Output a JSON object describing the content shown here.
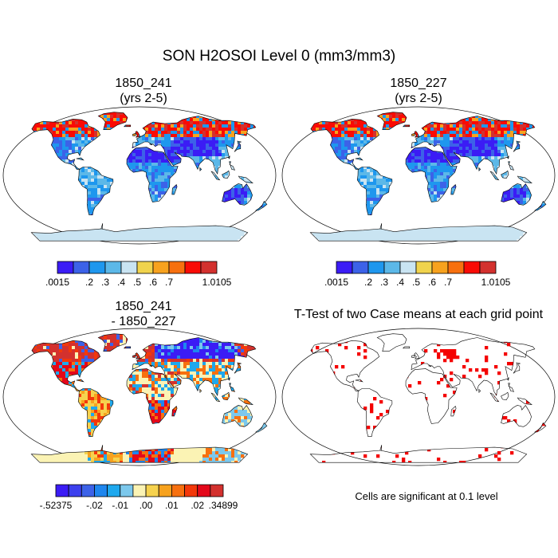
{
  "figure": {
    "title": "SON H2OSOI Level 0 (mm3/mm3)"
  },
  "panels": [
    {
      "id": "case1",
      "title_line1": "1850_241",
      "title_line2": "(yrs 2-5)",
      "style": "field"
    },
    {
      "id": "case2",
      "title_line1": "1850_227",
      "title_line2": "(yrs 2-5)",
      "style": "field"
    },
    {
      "id": "diff",
      "title_line1": "1850_241",
      "title_line2": "- 1850_227",
      "style": "diff"
    },
    {
      "id": "ttest",
      "title_line1": "T-Test of two Case means at each grid point",
      "title_line2": "",
      "style": "ttest"
    }
  ],
  "colorbars": [
    {
      "id": "field-colorbar-1",
      "colors": [
        "#3b1cf5",
        "#3c62e8",
        "#1e97ee",
        "#5cb8e8",
        "#c9e4f2",
        "#f0d34d",
        "#f7a21e",
        "#f7700f",
        "#f90b05",
        "#d3312e"
      ],
      "labels": [
        ".0015",
        ".2",
        ".3",
        ".4",
        ".5",
        ".6",
        ".7",
        "1.0105"
      ],
      "label_edges": [
        0,
        2,
        3,
        4,
        5,
        6,
        7,
        10
      ]
    },
    {
      "id": "field-colorbar-2",
      "colors": [
        "#3b1cf5",
        "#3c62e8",
        "#1e97ee",
        "#5cb8e8",
        "#c9e4f2",
        "#f0d34d",
        "#f7a21e",
        "#f7700f",
        "#f90b05",
        "#d3312e"
      ],
      "labels": [
        ".0015",
        ".2",
        ".3",
        ".4",
        ".5",
        ".6",
        ".7",
        "1.0105"
      ],
      "label_edges": [
        0,
        2,
        3,
        4,
        5,
        6,
        7,
        10
      ]
    },
    {
      "id": "diff-colorbar",
      "colors": [
        "#3b1cf5",
        "#3c40ee",
        "#3c62e8",
        "#1e86ee",
        "#1ea8ee",
        "#7cc8ec",
        "#fbf3b4",
        "#f6d24e",
        "#f7a21e",
        "#f7700f",
        "#f3380a",
        "#e4081a",
        "#d3312e"
      ],
      "labels": [
        "-.52375",
        "-.02",
        "-.01",
        ".00",
        ".01",
        ".02",
        ".34899"
      ],
      "label_edges": [
        0,
        3,
        5,
        7,
        9,
        11,
        13
      ]
    }
  ],
  "significance_note": "Cells are significant at 0.1 level"
}
